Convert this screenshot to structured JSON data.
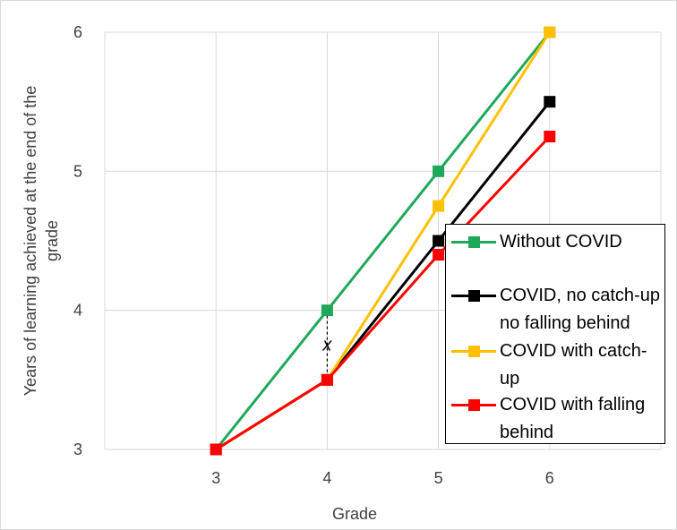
{
  "chart_data": {
    "type": "line",
    "xlabel": "Grade",
    "ylabel": "Years of learning achieved at the end of the grade",
    "x": [
      3,
      4,
      5,
      6
    ],
    "xlim": [
      2,
      7
    ],
    "ylim": [
      3,
      6
    ],
    "xticks": [
      "3",
      "4",
      "5",
      "6"
    ],
    "yticks": [
      "3",
      "4",
      "5",
      "6"
    ],
    "grid": true,
    "legend_position": "bottom-right",
    "annotation": "x",
    "series": [
      {
        "name": "Without COVID",
        "color": "#1fa85a",
        "values": [
          3,
          4,
          5,
          6
        ]
      },
      {
        "name": "COVID, no catch-up no falling behind",
        "color": "#000000",
        "values": [
          3,
          3.5,
          4.5,
          5.5
        ]
      },
      {
        "name": "COVID with catch-up",
        "color": "#ffc000",
        "values": [
          3,
          3.5,
          4.75,
          6
        ]
      },
      {
        "name": "COVID with falling behind",
        "color": "#ff0000",
        "values": [
          3,
          3.5,
          4.4,
          5.25
        ]
      }
    ]
  }
}
